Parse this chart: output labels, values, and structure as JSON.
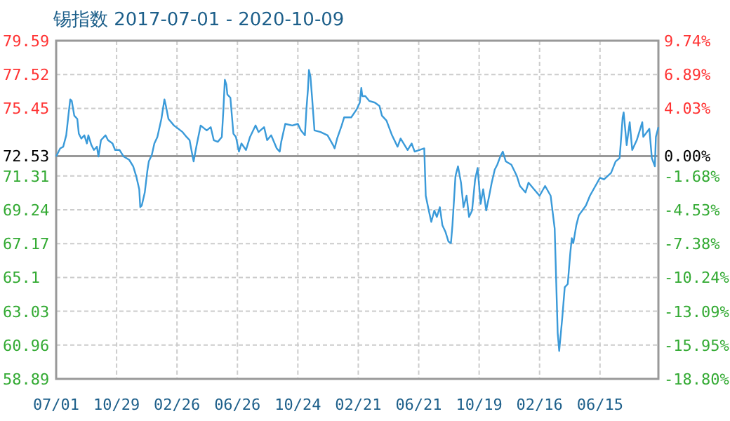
{
  "chart_data": {
    "type": "line",
    "title": "锡指数 2017-07-01 - 2020-10-09",
    "x": [
      "2017-07-01",
      "2017-07-09",
      "2017-07-15",
      "2017-07-21",
      "2017-07-26",
      "2017-07-29",
      "2017-08-01",
      "2017-08-06",
      "2017-08-12",
      "2017-08-15",
      "2017-08-20",
      "2017-08-26",
      "2017-08-31",
      "2017-09-03",
      "2017-09-09",
      "2017-09-14",
      "2017-09-20",
      "2017-09-23",
      "2017-09-28",
      "2017-10-07",
      "2017-10-12",
      "2017-10-21",
      "2017-10-26",
      "2017-11-04",
      "2017-11-12",
      "2017-11-23",
      "2017-12-01",
      "2017-12-07",
      "2017-12-13",
      "2017-12-15",
      "2017-12-18",
      "2017-12-24",
      "2017-12-29",
      "2018-01-01",
      "2018-01-07",
      "2018-01-12",
      "2018-01-18",
      "2018-01-26",
      "2018-02-01",
      "2018-02-04",
      "2018-02-09",
      "2018-02-20",
      "2018-03-09",
      "2018-03-17",
      "2018-03-23",
      "2018-03-29",
      "2018-03-31",
      "2018-04-06",
      "2018-04-14",
      "2018-04-26",
      "2018-05-04",
      "2018-05-10",
      "2018-05-18",
      "2018-05-26",
      "2018-05-29",
      "2018-06-01",
      "2018-06-04",
      "2018-06-06",
      "2018-06-12",
      "2018-06-18",
      "2018-06-23",
      "2018-06-29",
      "2018-07-04",
      "2018-07-13",
      "2018-07-21",
      "2018-08-01",
      "2018-08-07",
      "2018-08-18",
      "2018-08-24",
      "2018-09-01",
      "2018-09-12",
      "2018-09-18",
      "2018-09-21",
      "2018-09-29",
      "2018-10-13",
      "2018-10-24",
      "2018-10-30",
      "2018-11-07",
      "2018-11-10",
      "2018-11-13",
      "2018-11-15",
      "2018-11-18",
      "2018-11-21",
      "2018-11-26",
      "2018-12-08",
      "2018-12-22",
      "2019-01-02",
      "2019-01-05",
      "2019-01-10",
      "2019-01-19",
      "2019-01-24",
      "2019-02-07",
      "2019-02-18",
      "2019-02-24",
      "2019-02-27",
      "2019-03-01",
      "2019-03-07",
      "2019-03-15",
      "2019-03-26",
      "2019-04-04",
      "2019-04-09",
      "2019-04-18",
      "2019-04-29",
      "2019-05-10",
      "2019-05-16",
      "2019-05-30",
      "2019-06-07",
      "2019-06-13",
      "2019-07-02",
      "2019-07-05",
      "2019-07-11",
      "2019-07-16",
      "2019-07-22",
      "2019-07-27",
      "2019-08-02",
      "2019-08-07",
      "2019-08-13",
      "2019-08-19",
      "2019-08-24",
      "2019-08-27",
      "2019-09-02",
      "2019-09-07",
      "2019-09-13",
      "2019-09-18",
      "2019-09-24",
      "2019-09-29",
      "2019-10-05",
      "2019-10-11",
      "2019-10-16",
      "2019-10-22",
      "2019-10-27",
      "2019-11-02",
      "2019-11-08",
      "2019-11-13",
      "2019-11-19",
      "2019-11-24",
      "2019-11-30",
      "2019-12-05",
      "2019-12-11",
      "2019-12-22",
      "2020-01-02",
      "2020-01-08",
      "2020-01-19",
      "2020-01-25",
      "2020-02-05",
      "2020-02-16",
      "2020-02-27",
      "2020-03-09",
      "2020-03-17",
      "2020-03-23",
      "2020-03-26",
      "2020-04-01",
      "2020-04-06",
      "2020-04-12",
      "2020-04-17",
      "2020-04-20",
      "2020-04-23",
      "2020-04-29",
      "2020-05-04",
      "2020-05-18",
      "2020-05-26",
      "2020-06-15",
      "2020-06-23",
      "2020-07-07",
      "2020-07-16",
      "2020-07-24",
      "2020-07-30",
      "2020-08-01",
      "2020-08-07",
      "2020-08-13",
      "2020-08-18",
      "2020-08-27",
      "2020-09-07",
      "2020-09-09",
      "2020-09-21",
      "2020-09-26",
      "2020-10-02",
      "2020-10-04",
      "2020-10-09"
    ],
    "series": [
      {
        "color": "#3a9ad9",
        "values": [
          72.5,
          73.0,
          73.1,
          73.8,
          75.2,
          76.0,
          75.9,
          75.0,
          74.8,
          73.9,
          73.6,
          73.8,
          73.3,
          73.8,
          73.2,
          72.9,
          73.1,
          72.5,
          73.5,
          73.8,
          73.5,
          73.3,
          72.9,
          72.9,
          72.5,
          72.3,
          71.9,
          71.3,
          70.5,
          69.4,
          69.5,
          70.3,
          71.6,
          72.2,
          72.6,
          73.3,
          73.7,
          74.8,
          76.0,
          75.6,
          74.8,
          74.4,
          74.0,
          73.7,
          73.5,
          72.5,
          72.2,
          73.2,
          74.4,
          74.1,
          74.3,
          73.5,
          73.4,
          73.7,
          75.3,
          77.2,
          76.9,
          76.3,
          76.1,
          73.9,
          73.7,
          72.8,
          73.3,
          72.9,
          73.7,
          74.4,
          74.0,
          74.3,
          73.5,
          73.8,
          73.0,
          72.8,
          73.4,
          74.5,
          74.4,
          74.5,
          74.1,
          73.8,
          75.4,
          76.6,
          77.8,
          77.4,
          76.2,
          74.1,
          74.0,
          73.8,
          73.2,
          73.0,
          73.6,
          74.4,
          74.9,
          74.9,
          75.4,
          75.8,
          76.7,
          76.2,
          76.2,
          75.9,
          75.8,
          75.6,
          75.0,
          74.7,
          73.8,
          73.1,
          73.6,
          72.9,
          73.3,
          72.8,
          73.0,
          70.1,
          69.2,
          68.5,
          69.2,
          68.8,
          69.4,
          68.3,
          67.9,
          67.3,
          67.2,
          68.3,
          71.3,
          71.9,
          70.9,
          69.4,
          70.1,
          68.8,
          69.2,
          71.1,
          71.8,
          69.6,
          70.5,
          69.2,
          70.1,
          70.9,
          71.7,
          72.0,
          72.5,
          72.8,
          72.2,
          72.0,
          71.3,
          70.7,
          70.3,
          70.9,
          70.5,
          70.1,
          70.7,
          70.1,
          68.1,
          61.7,
          60.6,
          62.6,
          64.5,
          64.7,
          66.6,
          67.5,
          67.2,
          68.3,
          68.9,
          69.5,
          70.1,
          71.2,
          71.1,
          71.5,
          72.2,
          72.4,
          74.9,
          75.2,
          73.2,
          74.6,
          72.9,
          73.5,
          74.6,
          73.7,
          74.2,
          72.4,
          71.9,
          73.7,
          74.3
        ]
      }
    ],
    "xlim": [
      "2017-07-01",
      "2020-10-09"
    ],
    "xticks": [
      {
        "value": "2017-07-01",
        "label": "07/01"
      },
      {
        "value": "2017-10-29",
        "label": "10/29"
      },
      {
        "value": "2018-02-26",
        "label": "02/26"
      },
      {
        "value": "2018-06-26",
        "label": "06/26"
      },
      {
        "value": "2018-10-24",
        "label": "10/24"
      },
      {
        "value": "2019-02-21",
        "label": "02/21"
      },
      {
        "value": "2019-06-21",
        "label": "06/21"
      },
      {
        "value": "2019-10-19",
        "label": "10/19"
      },
      {
        "value": "2020-02-16",
        "label": "02/16"
      },
      {
        "value": "2020-06-15",
        "label": "06/15"
      }
    ],
    "ylim": [
      58.89,
      79.59
    ],
    "yticks": [
      58.89,
      60.96,
      63.03,
      {
        "value": 65.1,
        "label": "65.1"
      },
      67.17,
      69.24,
      71.31,
      72.53,
      75.45,
      77.52,
      79.59
    ],
    "y2lim": [
      -18.8,
      9.74
    ],
    "y2ticks": [
      {
        "value": -18.8,
        "label": "-18.80%"
      },
      {
        "value": -15.95,
        "label": "-15.95%"
      },
      {
        "value": -13.09,
        "label": "-13.09%"
      },
      {
        "value": -10.24,
        "label": "-10.24%"
      },
      {
        "value": -7.38,
        "label": "-7.38%"
      },
      {
        "value": -4.53,
        "label": "-4.53%"
      },
      {
        "value": -1.68,
        "label": "-1.68%"
      },
      {
        "value": 0,
        "label": "0.00%"
      },
      {
        "value": 4.03,
        "label": "4.03%"
      },
      {
        "value": 6.89,
        "label": "6.89%"
      },
      {
        "value": 9.74,
        "label": "9.74%"
      }
    ],
    "ref_lines": [
      {
        "axis": "y",
        "value": 72.53,
        "color": "#999999"
      }
    ],
    "grid": true
  }
}
